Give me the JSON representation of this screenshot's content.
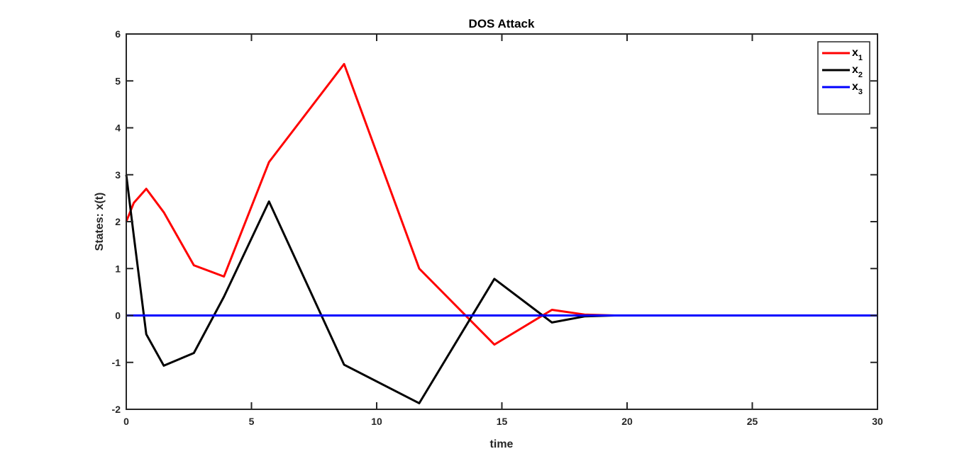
{
  "chart_data": {
    "type": "line",
    "title": "DOS Attack",
    "xlabel": "time",
    "ylabel": "States: x(t)",
    "xlim": [
      0,
      30
    ],
    "ylim": [
      -2,
      6
    ],
    "xticks": [
      0,
      5,
      10,
      15,
      20,
      25,
      30
    ],
    "yticks": [
      -2,
      -1,
      0,
      1,
      2,
      3,
      4,
      5,
      6
    ],
    "grid": false,
    "legend_position": "top-right",
    "series": [
      {
        "name": "x",
        "subscript": "1",
        "color": "#ff0000",
        "x": [
          0,
          0.3,
          0.8,
          1.5,
          2.7,
          3.9,
          5.7,
          8.7,
          11.7,
          14.7,
          17.0,
          18.3,
          19.5,
          21
        ],
        "y": [
          2.0,
          2.4,
          2.7,
          2.2,
          1.07,
          0.83,
          3.27,
          5.36,
          1.0,
          -0.62,
          0.12,
          0.02,
          0.0,
          0.0
        ]
      },
      {
        "name": "x",
        "subscript": "2",
        "color": "#000000",
        "x": [
          0,
          0.3,
          0.8,
          1.5,
          2.7,
          3.9,
          5.7,
          8.7,
          11.7,
          14.7,
          17.0,
          18.3,
          19.5,
          21
        ],
        "y": [
          3.0,
          1.7,
          -0.4,
          -1.07,
          -0.8,
          0.4,
          2.43,
          -1.05,
          -1.87,
          0.78,
          -0.15,
          -0.02,
          0.0,
          0.0
        ]
      },
      {
        "name": "x",
        "subscript": "3",
        "color": "#0000ff",
        "x": [
          0,
          30
        ],
        "y": [
          0,
          0
        ]
      }
    ]
  }
}
